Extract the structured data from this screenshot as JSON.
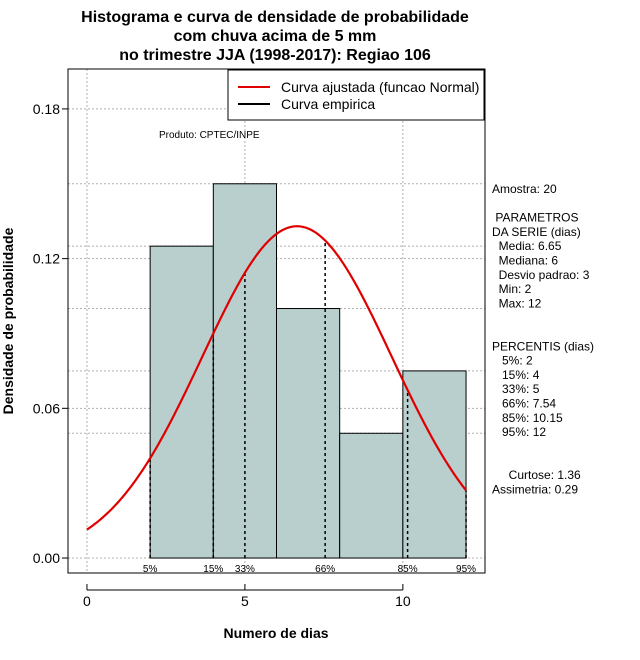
{
  "chart_data": {
    "type": "bar",
    "title_lines": [
      "Histograma e curva de densidade de probabilidade",
      "com chuva acima de 5 mm",
      "no trimestre JJA (1998-2017): Regiao 106"
    ],
    "xlabel": "Numero de dias",
    "ylabel": "Densidade de probabilidade",
    "xlim": [
      -0.6,
      12.6
    ],
    "ylim": [
      -0.006,
      0.196
    ],
    "x_ticks": [
      0,
      5,
      10
    ],
    "y_ticks": [
      0.0,
      0.06,
      0.12,
      0.18
    ],
    "y_tick_labels": [
      "0.00",
      "0.06",
      "0.12",
      "0.18"
    ],
    "bin_edges": [
      2,
      4,
      6,
      8,
      10,
      12
    ],
    "values": [
      0.125,
      0.15,
      0.1,
      0.05,
      0.075
    ],
    "bar_color": "#b8cfce",
    "normal_curve": {
      "mean": 6.65,
      "sd": 3.0,
      "x_range": [
        0,
        12
      ],
      "color": "#e00000"
    },
    "percentiles": [
      {
        "label": "5%",
        "value": 2
      },
      {
        "label": "15%",
        "value": 4
      },
      {
        "label": "33%",
        "value": 5
      },
      {
        "label": "66%",
        "value": 7.54
      },
      {
        "label": "85%",
        "value": 10.15
      },
      {
        "label": "95%",
        "value": 12
      }
    ],
    "legend": [
      {
        "label": "Curva ajustada (funcao Normal)",
        "color": "#e00000"
      },
      {
        "label": "Curva empirica",
        "color": "#000000"
      }
    ],
    "legend_position": "top-right",
    "grid": true,
    "product_text": "Produto: CPTEC/INPE",
    "stats_panel": [
      "Amostra: 20",
      "",
      " PARAMETROS",
      "DA SERIE (dias)",
      "  Media: 6.65",
      "  Mediana: 6",
      "  Desvio padrao: 3",
      "  Min: 2",
      "  Max: 12",
      "",
      "",
      "PERCENTIS (dias)",
      "   5%: 2",
      "   15%: 4",
      "   33%: 5",
      "   66%: 7.54",
      "   85%: 10.15",
      "   95%: 12",
      "",
      "",
      "     Curtose: 1.36",
      "Assimetria: 0.29"
    ]
  }
}
